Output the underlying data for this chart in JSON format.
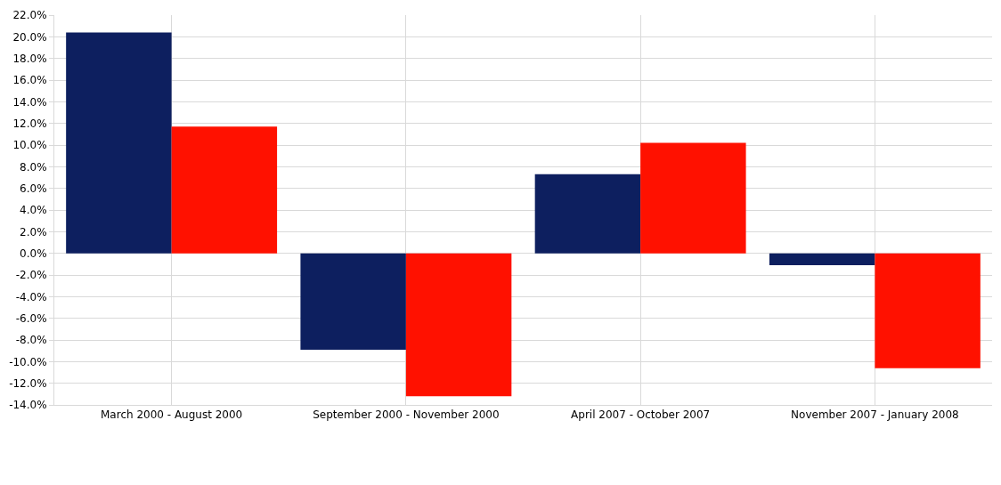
{
  "chart_data": {
    "type": "bar",
    "categories": [
      "March 2000 - August 2000",
      "September 2000 - November 2000",
      "April 2007 - October 2007",
      "November 2007 - January 2008"
    ],
    "series": [
      {
        "color": "#0d1f5f",
        "values": [
          20.4,
          -8.9,
          7.3,
          -1.1
        ]
      },
      {
        "color": "#ff1100",
        "values": [
          11.7,
          -13.2,
          10.2,
          -10.6
        ]
      }
    ],
    "ylim": [
      -14,
      22
    ],
    "yticks": [
      {
        "value": -14,
        "label": "-14.0%"
      },
      {
        "value": -12,
        "label": "-12.0%"
      },
      {
        "value": -10,
        "label": "-10.0%"
      },
      {
        "value": -8,
        "label": "-8.0%"
      },
      {
        "value": -6,
        "label": "-6.0%"
      },
      {
        "value": -4,
        "label": "-4.0%"
      },
      {
        "value": -2,
        "label": "-2.0%"
      },
      {
        "value": 0,
        "label": "0.0%"
      },
      {
        "value": 2,
        "label": "2.0%"
      },
      {
        "value": 4,
        "label": "4.0%"
      },
      {
        "value": 6,
        "label": "6.0%"
      },
      {
        "value": 8,
        "label": "8.0%"
      },
      {
        "value": 10,
        "label": "10.0%"
      },
      {
        "value": 12,
        "label": "12.0%"
      },
      {
        "value": 14,
        "label": "14.0%"
      },
      {
        "value": 16,
        "label": "16.0%"
      },
      {
        "value": 18,
        "label": "18.0%"
      },
      {
        "value": 20,
        "label": "20.0%"
      },
      {
        "value": 22,
        "label": "22.0%"
      }
    ],
    "grid": true,
    "legend": false
  }
}
